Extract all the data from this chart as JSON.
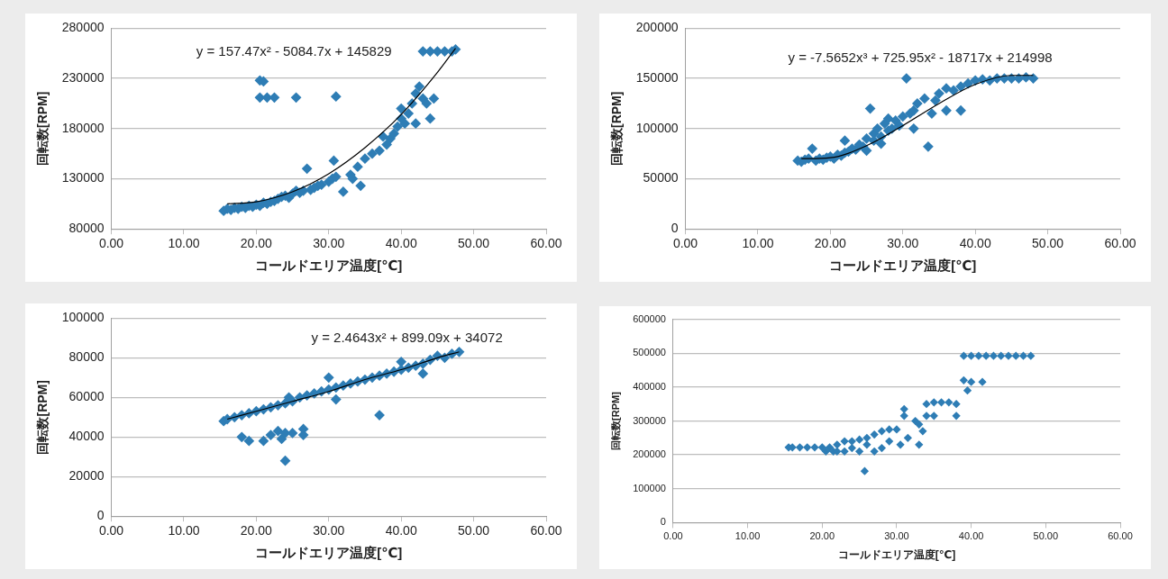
{
  "chart_data": [
    {
      "type": "scatter",
      "xlabel": "コールドエリア温度[℃]",
      "ylabel": "回転数[RPM]",
      "annotations": [
        "y = 157.47x² - 5084.7x + 145829"
      ],
      "marker": "diamond",
      "grid": "y",
      "legend": false,
      "xlim": [
        0,
        60
      ],
      "xticks": [
        {
          "value": 0,
          "label": "0.00"
        },
        {
          "value": 10,
          "label": "10.00"
        },
        {
          "value": 20,
          "label": "20.00"
        },
        {
          "value": 30,
          "label": "30.00"
        },
        {
          "value": 40,
          "label": "40.00"
        },
        {
          "value": 50,
          "label": "50.00"
        },
        {
          "value": 60,
          "label": "60.00"
        }
      ],
      "ylim": [
        80000,
        280000
      ],
      "yticks": [
        80000,
        130000,
        180000,
        230000,
        280000
      ],
      "series": [
        {
          "type": "scatter",
          "color": "#2e7db5",
          "x": [
            15.5,
            16,
            16.5,
            17,
            17.5,
            18,
            18.5,
            19,
            19.5,
            20,
            20.5,
            20.5,
            20.5,
            21,
            21,
            21.5,
            21.5,
            22,
            22.5,
            22.5,
            23,
            23.5,
            24,
            24.5,
            25,
            25.5,
            25.5,
            26,
            26.5,
            27,
            27.5,
            28,
            28.5,
            29,
            30,
            30.5,
            31,
            30.7,
            31,
            32,
            33,
            33.3,
            34,
            34.4,
            35,
            36,
            37,
            37.5,
            38,
            38.5,
            39,
            39.5,
            40,
            40,
            40.5,
            41,
            41.5,
            42,
            42,
            42.5,
            43,
            43.5,
            44,
            44.5,
            43,
            44,
            45,
            46,
            47,
            47.5
          ],
          "values": [
            98000,
            100000,
            99000,
            101000,
            100000,
            102000,
            101000,
            103000,
            102000,
            104000,
            103000,
            228000,
            211000,
            106000,
            227000,
            105000,
            211000,
            107000,
            108000,
            211000,
            110000,
            112000,
            113000,
            111000,
            115000,
            118000,
            211000,
            116000,
            118000,
            140000,
            119000,
            121000,
            123000,
            124000,
            127000,
            130000,
            132000,
            148000,
            212000,
            117000,
            134000,
            130000,
            142000,
            123000,
            150000,
            155000,
            158000,
            172000,
            164000,
            170000,
            175000,
            182000,
            190000,
            200000,
            185000,
            195000,
            205000,
            185000,
            215000,
            222000,
            210000,
            205000,
            190000,
            210000,
            257000,
            257000,
            257000,
            257000,
            257000,
            259000
          ]
        },
        {
          "type": "line",
          "color": "#000000",
          "marker": "none",
          "x": [
            16,
            20,
            25,
            30,
            35,
            40,
            45,
            47.5
          ],
          "values": [
            105000,
            107000,
            117000,
            135000,
            161000,
            194000,
            236000,
            260000
          ]
        }
      ]
    },
    {
      "type": "scatter",
      "xlabel": "コールドエリア温度[℃]",
      "ylabel": "回転数[RPM]",
      "annotations": [
        "y = -7.5652x³ + 725.95x² - 18717x + 214998"
      ],
      "marker": "diamond",
      "grid": "y",
      "legend": false,
      "xlim": [
        0,
        60
      ],
      "xticks": [
        {
          "value": 0,
          "label": "0.00"
        },
        {
          "value": 10,
          "label": "10.00"
        },
        {
          "value": 20,
          "label": "20.00"
        },
        {
          "value": 30,
          "label": "30.00"
        },
        {
          "value": 40,
          "label": "40.00"
        },
        {
          "value": 50,
          "label": "50.00"
        },
        {
          "value": 60,
          "label": "60.00"
        }
      ],
      "ylim": [
        0,
        200000
      ],
      "yticks": [
        0,
        50000,
        100000,
        150000,
        200000
      ],
      "series": [
        {
          "type": "scatter",
          "color": "#2e7db5",
          "x": [
            15.5,
            16,
            16.5,
            17,
            17.5,
            18,
            18.5,
            19,
            19.5,
            20,
            20.5,
            21,
            21.5,
            22,
            22,
            22.5,
            23,
            23.5,
            24,
            24.5,
            25,
            25,
            25.5,
            26,
            26,
            26.5,
            27,
            27,
            27.5,
            28,
            28,
            28.5,
            29,
            29.5,
            30,
            30.5,
            31,
            31.5,
            31.5,
            32,
            33.5,
            33,
            34,
            34.5,
            35,
            36,
            36,
            37,
            38,
            38,
            39,
            40,
            41,
            42,
            43,
            44,
            45,
            46,
            47,
            48
          ],
          "values": [
            68000,
            67000,
            69000,
            70000,
            80000,
            68000,
            70000,
            69000,
            71000,
            72000,
            70000,
            74000,
            73000,
            76000,
            88000,
            77000,
            80000,
            79000,
            84000,
            82000,
            90000,
            78000,
            120000,
            88000,
            95000,
            100000,
            92000,
            85000,
            105000,
            98000,
            110000,
            100000,
            108000,
            103000,
            112000,
            150000,
            115000,
            118000,
            100000,
            125000,
            82000,
            130000,
            115000,
            128000,
            135000,
            118000,
            140000,
            138000,
            142000,
            118000,
            145000,
            148000,
            149000,
            148000,
            150000,
            150000,
            150000,
            150000,
            151000,
            150000
          ]
        },
        {
          "type": "line",
          "color": "#000000",
          "marker": "none",
          "x": [
            16,
            20,
            25,
            30,
            35,
            40,
            45,
            48
          ],
          "values": [
            70000,
            71000,
            83000,
            103000,
            125000,
            144000,
            153000,
            153000
          ]
        }
      ]
    },
    {
      "type": "scatter",
      "xlabel": "コールドエリア温度[℃]",
      "ylabel": "回転数[RPM]",
      "annotations": [
        "y = 2.4643x² + 899.09x + 34072"
      ],
      "marker": "diamond",
      "grid": "y",
      "legend": false,
      "xlim": [
        0,
        60
      ],
      "xticks": [
        {
          "value": 0,
          "label": "0.00"
        },
        {
          "value": 10,
          "label": "10.00"
        },
        {
          "value": 20,
          "label": "20.00"
        },
        {
          "value": 30,
          "label": "30.00"
        },
        {
          "value": 40,
          "label": "40.00"
        },
        {
          "value": 50,
          "label": "50.00"
        },
        {
          "value": 60,
          "label": "60.00"
        }
      ],
      "ylim": [
        0,
        100000
      ],
      "yticks": [
        0,
        20000,
        40000,
        60000,
        80000,
        100000
      ],
      "series": [
        {
          "type": "scatter",
          "color": "#2e7db5",
          "x": [
            15.5,
            16,
            17,
            18,
            18,
            19,
            19,
            20,
            21,
            21,
            22,
            22,
            23,
            23,
            23.5,
            24,
            24,
            24,
            24.5,
            25,
            25,
            26,
            26.5,
            26.5,
            27,
            28,
            29,
            30,
            30,
            31,
            31,
            32,
            33,
            34,
            35,
            36,
            37,
            37,
            38,
            39,
            40,
            40,
            41,
            42,
            43,
            43,
            44,
            45,
            46,
            47,
            48
          ],
          "values": [
            48000,
            49000,
            50000,
            51000,
            40000,
            52000,
            38000,
            53000,
            54000,
            38000,
            55000,
            41000,
            56000,
            43000,
            39000,
            57000,
            28000,
            42000,
            60000,
            58000,
            42000,
            60000,
            44000,
            41000,
            61000,
            62000,
            63000,
            64000,
            70000,
            59000,
            65000,
            66000,
            67000,
            68000,
            69000,
            70000,
            51000,
            71000,
            72000,
            73000,
            74000,
            78000,
            75000,
            76000,
            77000,
            72000,
            79000,
            81000,
            80000,
            82000,
            83000
          ]
        },
        {
          "type": "line",
          "color": "#000000",
          "marker": "none",
          "x": [
            16,
            20,
            25,
            30,
            35,
            40,
            45,
            48
          ],
          "values": [
            49000,
            53000,
            58000,
            63000,
            69000,
            74000,
            80000,
            83000
          ]
        }
      ]
    },
    {
      "type": "scatter",
      "xlabel": "コールドエリア温度[℃]",
      "ylabel": "回転数[RPM]",
      "marker": "diamond",
      "grid": "y",
      "legend": false,
      "xlim": [
        0,
        60
      ],
      "xticks": [
        {
          "value": 0,
          "label": "0.00"
        },
        {
          "value": 10,
          "label": "10.00"
        },
        {
          "value": 20,
          "label": "20.00"
        },
        {
          "value": 30,
          "label": "30.00"
        },
        {
          "value": 40,
          "label": "40.00"
        },
        {
          "value": 50,
          "label": "50.00"
        },
        {
          "value": 60,
          "label": "60.00"
        }
      ],
      "ylim": [
        0,
        600000
      ],
      "yticks": [
        0,
        100000,
        200000,
        300000,
        400000,
        500000,
        600000
      ],
      "series": [
        {
          "type": "scatter",
          "color": "#2e7db5",
          "x": [
            15.5,
            16,
            17,
            18,
            19,
            20,
            20.5,
            21,
            21.5,
            22,
            22,
            23,
            23,
            24,
            24,
            25,
            25,
            25.7,
            26,
            26,
            27,
            27,
            28,
            28,
            29,
            29,
            30,
            30.5,
            31,
            31,
            31.5,
            32.5,
            33,
            33,
            33.5,
            34,
            34,
            35,
            35,
            36,
            37,
            38,
            38,
            39,
            39.5,
            40,
            41.5,
            39,
            40,
            41,
            42,
            43,
            44,
            45,
            46,
            47,
            48
          ],
          "values": [
            222000,
            222000,
            222000,
            222000,
            222000,
            222000,
            210000,
            222000,
            210000,
            230000,
            210000,
            240000,
            210000,
            240000,
            220000,
            245000,
            210000,
            152000,
            250000,
            230000,
            260000,
            210000,
            270000,
            220000,
            275000,
            240000,
            275000,
            230000,
            335000,
            315000,
            250000,
            300000,
            230000,
            290000,
            270000,
            350000,
            315000,
            355000,
            315000,
            355000,
            355000,
            350000,
            315000,
            420000,
            390000,
            415000,
            415000,
            492000,
            492000,
            492000,
            492000,
            492000,
            492000,
            492000,
            492000,
            492000,
            492000
          ]
        }
      ]
    }
  ]
}
